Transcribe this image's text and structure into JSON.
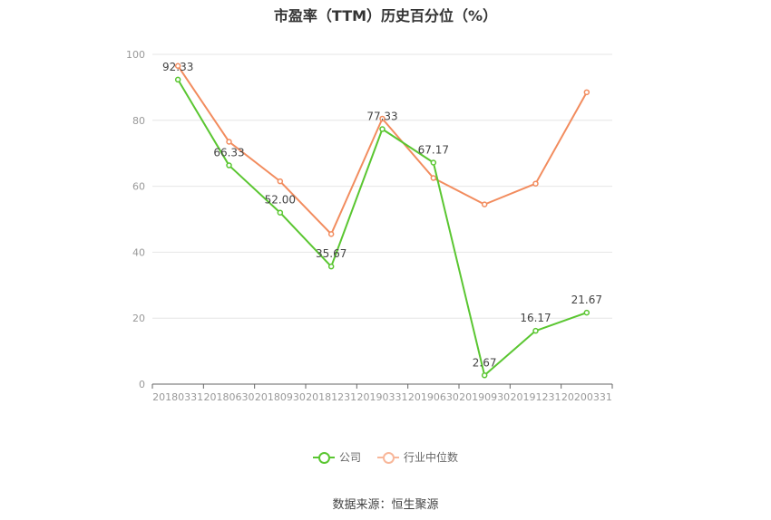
{
  "chart_data": {
    "type": "line",
    "title": "市盈率（TTM）历史百分位（%）",
    "categories": [
      "20180331",
      "20180630",
      "20180930",
      "20181231",
      "20190331",
      "20190630",
      "20190930",
      "20191231",
      "20200331"
    ],
    "series": [
      {
        "name": "公司",
        "color": "#5ac631",
        "values": [
          92.33,
          66.33,
          52.0,
          35.67,
          77.33,
          67.17,
          2.67,
          16.17,
          21.67
        ],
        "labels": [
          "92.33",
          "66.33",
          "52.00",
          "35.67",
          "77.33",
          "67.17",
          "2.67",
          "16.17",
          "21.67"
        ]
      },
      {
        "name": "行业中位数",
        "color": "#f28c5e",
        "values": [
          96.5,
          73.5,
          61.5,
          45.5,
          80.5,
          62.5,
          54.5,
          60.8,
          88.5
        ]
      }
    ],
    "ylim": [
      0,
      100
    ],
    "yticks": [
      0,
      20,
      40,
      60,
      80,
      100
    ],
    "grid": true,
    "legend": "bottom-center"
  },
  "source": "数据来源：恒生聚源"
}
